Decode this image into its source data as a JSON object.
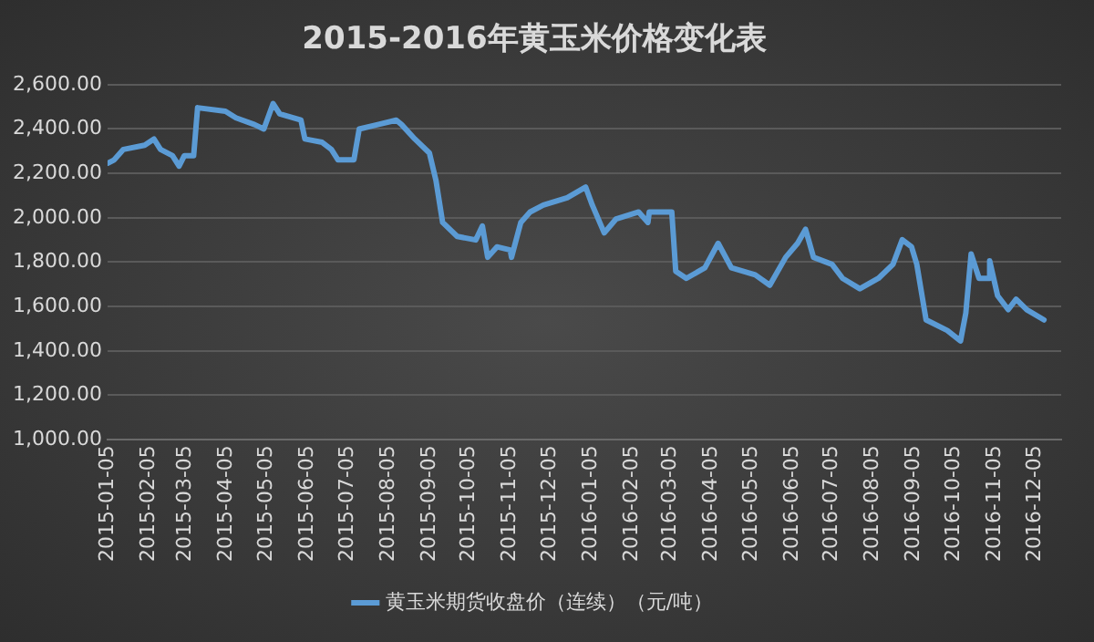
{
  "chart_data": {
    "type": "line",
    "title": "2015-2016年黄玉米价格变化表",
    "x": [
      "2015-01-05",
      "2015-01-10",
      "2015-01-17",
      "2015-02-02",
      "2015-02-09",
      "2015-02-14",
      "2015-02-23",
      "2015-02-28",
      "2015-03-04",
      "2015-03-11",
      "2015-03-14",
      "2015-04-04",
      "2015-04-12",
      "2015-04-26",
      "2015-05-03",
      "2015-05-10",
      "2015-05-15",
      "2015-05-31",
      "2015-06-03",
      "2015-06-16",
      "2015-06-23",
      "2015-06-28",
      "2015-07-10",
      "2015-07-14",
      "2015-07-28",
      "2015-08-11",
      "2015-08-15",
      "2015-08-25",
      "2015-09-05",
      "2015-09-10",
      "2015-09-15",
      "2015-09-26",
      "2015-10-10",
      "2015-10-15",
      "2015-10-19",
      "2015-10-26",
      "2015-11-05",
      "2015-11-06",
      "2015-11-13",
      "2015-11-20",
      "2015-11-30",
      "2015-12-18",
      "2016-01-01",
      "2016-01-06",
      "2016-01-15",
      "2016-01-24",
      "2016-02-10",
      "2016-02-17",
      "2016-02-18",
      "2016-03-06",
      "2016-03-09",
      "2016-03-17",
      "2016-03-31",
      "2016-04-10",
      "2016-04-20",
      "2016-05-08",
      "2016-05-19",
      "2016-05-31",
      "2016-06-09",
      "2016-06-15",
      "2016-06-21",
      "2016-07-05",
      "2016-07-13",
      "2016-07-26",
      "2016-08-09",
      "2016-08-20",
      "2016-08-27",
      "2016-09-03",
      "2016-09-07",
      "2016-09-14",
      "2016-09-30",
      "2016-10-10",
      "2016-10-14",
      "2016-10-18",
      "2016-10-24",
      "2016-10-31",
      "2016-11-01",
      "2016-11-07",
      "2016-11-15",
      "2016-11-21",
      "2016-11-29",
      "2016-12-12"
    ],
    "series": [
      {
        "name": "黄玉米期货收盘价（连续）（元/吨）",
        "color": "#5b9bd5",
        "values": [
          2245,
          2261,
          2308,
          2327,
          2355,
          2308,
          2280,
          2233,
          2280,
          2280,
          2496,
          2480,
          2450,
          2420,
          2400,
          2515,
          2468,
          2440,
          2355,
          2340,
          2308,
          2261,
          2261,
          2400,
          2420,
          2440,
          2420,
          2355,
          2292,
          2167,
          1979,
          1916,
          1900,
          1963,
          1822,
          1869,
          1855,
          1822,
          1979,
          2026,
          2057,
          2090,
          2138,
          2057,
          1932,
          1995,
          2026,
          1979,
          2026,
          2026,
          1759,
          1727,
          1775,
          1885,
          1775,
          1743,
          1696,
          1822,
          1885,
          1948,
          1822,
          1790,
          1727,
          1680,
          1727,
          1790,
          1901,
          1869,
          1790,
          1540,
          1492,
          1445,
          1571,
          1837,
          1727,
          1727,
          1806,
          1649,
          1586,
          1633,
          1586,
          1540
        ]
      }
    ],
    "xlim": [
      "2015-01-05",
      "2016-12-25"
    ],
    "xticks": [
      "2015-01-05",
      "2015-02-05",
      "2015-03-05",
      "2015-04-05",
      "2015-05-05",
      "2015-06-05",
      "2015-07-05",
      "2015-08-05",
      "2015-09-05",
      "2015-10-05",
      "2015-11-05",
      "2015-12-05",
      "2016-01-05",
      "2016-02-05",
      "2016-03-05",
      "2016-04-05",
      "2016-05-05",
      "2016-06-05",
      "2016-07-05",
      "2016-08-05",
      "2016-09-05",
      "2016-10-05",
      "2016-11-05",
      "2016-12-05"
    ],
    "ylim": [
      1000,
      2600
    ],
    "yticks": [
      {
        "value": 1000,
        "label": "1,000.00"
      },
      {
        "value": 1200,
        "label": "1,200.00"
      },
      {
        "value": 1400,
        "label": "1,400.00"
      },
      {
        "value": 1600,
        "label": "1,600.00"
      },
      {
        "value": 1800,
        "label": "1,800.00"
      },
      {
        "value": 2000,
        "label": "2,000.00"
      },
      {
        "value": 2200,
        "label": "2,200.00"
      },
      {
        "value": 2400,
        "label": "2,400.00"
      },
      {
        "value": 2600,
        "label": "2,600.00"
      }
    ],
    "grid": "y",
    "legend": "bottom",
    "marker": "none",
    "line_style": "solid"
  }
}
